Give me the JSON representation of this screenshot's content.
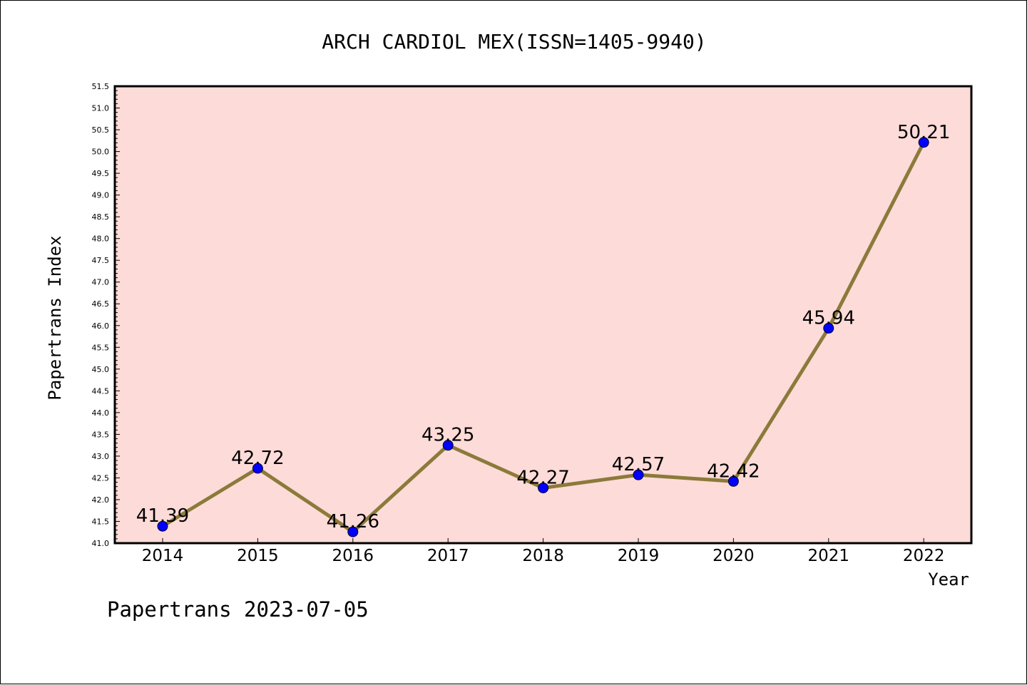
{
  "chart_data": {
    "type": "line",
    "title": "ARCH CARDIOL MEX(ISSN=1405-9940)",
    "xlabel": "Year",
    "ylabel": "Papertrans Index",
    "categories": [
      "2014",
      "2015",
      "2016",
      "2017",
      "2018",
      "2019",
      "2020",
      "2021",
      "2022"
    ],
    "series": [
      {
        "values": [
          41.39,
          42.72,
          41.26,
          43.25,
          42.27,
          42.57,
          42.42,
          45.94,
          50.21
        ],
        "labels": [
          "41.39",
          "42.72",
          "41.26",
          "43.25",
          "42.27",
          "42.57",
          "42.42",
          "45.94",
          "50.21"
        ]
      }
    ],
    "ylim": [
      41.0,
      51.5
    ],
    "yticks": [
      "41.0",
      "41.5",
      "42.0",
      "42.5",
      "43.0",
      "43.5",
      "44.0",
      "44.5",
      "45.0",
      "45.5",
      "46.0",
      "46.5",
      "47.0",
      "47.5",
      "48.0",
      "48.5",
      "49.0",
      "49.5",
      "50.0",
      "50.5",
      "51.0",
      "51.5"
    ],
    "grid": false,
    "legend": "none",
    "colors": {
      "plot_background": "#fddbd8",
      "line": "#8b7a3a",
      "marker": "#0000ff",
      "axes": "#000000"
    }
  },
  "footer": "Papertrans 2023-07-05"
}
